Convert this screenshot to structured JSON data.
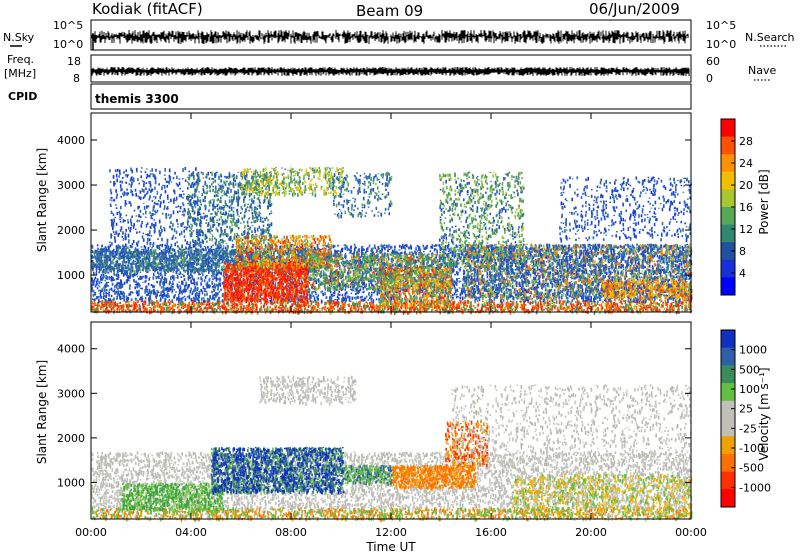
{
  "header": {
    "station": "Kodiak (fitACF)",
    "beam": "Beam 09",
    "date": "06/Jun/2009"
  },
  "strips": {
    "nsky_label": "N.Sky",
    "nsearch_label": "N.Search",
    "freq_label_1": "Freq.",
    "freq_label_2": "[MHz]",
    "nave_label": "Nave",
    "cpid_label": "CPID",
    "cpid_value": "themis 3300",
    "left_ticks_top": [
      "10^5",
      "10^0"
    ],
    "right_ticks_top": [
      "10^5",
      "10^0"
    ],
    "left_ticks_freq": [
      "18",
      "8"
    ],
    "right_ticks_nave": [
      "60",
      "0"
    ]
  },
  "chart_data": [
    {
      "type": "heatmap",
      "title": "",
      "ylabel": "Slant Range [km]",
      "xlabel": "",
      "ylim": [
        180,
        4600
      ],
      "xlim": [
        "00:00",
        "24:00"
      ],
      "y_ticks": [
        "4000",
        "3000",
        "2000",
        "1000"
      ],
      "colorbar": {
        "label": "Power [dB]",
        "ticks": [
          "28",
          "24",
          "20",
          "16",
          "12",
          "8",
          "4"
        ],
        "colors": [
          "#ff0000",
          "#ff5000",
          "#ff9000",
          "#f0c000",
          "#a8c830",
          "#58a858",
          "#308870",
          "#2050a0",
          "#1830d8",
          "#0000ff"
        ]
      }
    },
    {
      "type": "heatmap",
      "title": "",
      "ylabel": "Slant Range [km]",
      "xlabel": "Time UT",
      "ylim": [
        180,
        4600
      ],
      "xlim": [
        "00:00",
        "24:00"
      ],
      "y_ticks": [
        "4000",
        "3000",
        "2000",
        "1000"
      ],
      "x_ticks": [
        "00:00",
        "04:00",
        "08:00",
        "12:00",
        "16:00",
        "20:00",
        "00:00"
      ],
      "colorbar": {
        "label": "Velocity [m s⁻¹]",
        "ticks": [
          "1000",
          "500",
          "100",
          "25",
          "-25",
          "-100",
          "-500",
          "-1000"
        ],
        "colors": [
          "#1030c0",
          "#2e60a8",
          "#3a8a5a",
          "#62c042",
          "#c0c0b8",
          "#c0c0b8",
          "#f0a000",
          "#ff7000",
          "#ff3000",
          "#ff0000"
        ]
      }
    }
  ],
  "colors": {
    "low_scatter_blue": "#2050c0",
    "mid_green": "#4a9a60",
    "yellow": "#d8c040",
    "orange": "#ff8000",
    "red": "#ff2000",
    "grey_velocity": "#c4c4bc"
  }
}
